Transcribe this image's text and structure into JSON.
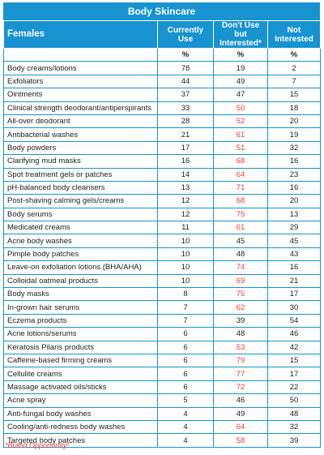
{
  "title": "Body Skincare",
  "headers": {
    "group": "Females",
    "currently_use": "Currently Use",
    "interested": "Don't Use but Interested*",
    "not_interested": "Not Interested"
  },
  "units": {
    "c1": "%",
    "c2": "%",
    "c3": "%"
  },
  "accent_color": "#1793d1",
  "highlight_color": "#e8423a",
  "rows": [
    {
      "label": "Body creams/lotions",
      "current": "78",
      "interested": "19",
      "not": "2",
      "hl": false
    },
    {
      "label": "Exfoliators",
      "current": "44",
      "interested": "49",
      "not": "7",
      "hl": false
    },
    {
      "label": "Ointments",
      "current": "37",
      "interested": "47",
      "not": "15",
      "hl": false
    },
    {
      "label": "Clinical strength deodorant/antiperspirants",
      "current": "33",
      "interested": "50",
      "not": "18",
      "hl": true
    },
    {
      "label": "All-over deodorant",
      "current": "28",
      "interested": "52",
      "not": "20",
      "hl": true
    },
    {
      "label": "Antibacterial washes",
      "current": "21",
      "interested": "61",
      "not": "19",
      "hl": true
    },
    {
      "label": "Body powders",
      "current": "17",
      "interested": "51",
      "not": "32",
      "hl": true
    },
    {
      "label": "Clarifying mud masks",
      "current": "16",
      "interested": "68",
      "not": "16",
      "hl": true
    },
    {
      "label": "Spot treatment gels or patches",
      "current": "14",
      "interested": "64",
      "not": "23",
      "hl": true
    },
    {
      "label": "pH-balanced body cleansers",
      "current": "13",
      "interested": "71",
      "not": "16",
      "hl": true
    },
    {
      "label": "Post-shaving calming gels/creams",
      "current": "12",
      "interested": "68",
      "not": "20",
      "hl": true
    },
    {
      "label": "Body serums",
      "current": "12",
      "interested": "75",
      "not": "13",
      "hl": true
    },
    {
      "label": "Medicated creams",
      "current": "11",
      "interested": "61",
      "not": "29",
      "hl": true
    },
    {
      "label": "Acne body washes",
      "current": "10",
      "interested": "45",
      "not": "45",
      "hl": false
    },
    {
      "label": "Pimple body patches",
      "current": "10",
      "interested": "48",
      "not": "43",
      "hl": false
    },
    {
      "label": "Leave-on exfoliation lotions (BHA/AHA)",
      "current": "10",
      "interested": "74",
      "not": "16",
      "hl": true
    },
    {
      "label": "Colloidal oatmeal products",
      "current": "10",
      "interested": "69",
      "not": "21",
      "hl": true
    },
    {
      "label": "Body masks",
      "current": "8",
      "interested": "75",
      "not": "17",
      "hl": true
    },
    {
      "label": "In-grown hair serums",
      "current": "7",
      "interested": "62",
      "not": "30",
      "hl": true
    },
    {
      "label": "Eczema products",
      "current": "7",
      "interested": "39",
      "not": "54",
      "hl": false
    },
    {
      "label": "Acne lotions/serums",
      "current": "6",
      "interested": "48",
      "not": "46",
      "hl": false
    },
    {
      "label": "Keratosis Pilaris products",
      "current": "6",
      "interested": "53",
      "not": "42",
      "hl": true
    },
    {
      "label": "Caffeine-based firming creams",
      "current": "6",
      "interested": "79",
      "not": "15",
      "hl": true
    },
    {
      "label": "Cellulite creams",
      "current": "6",
      "interested": "77",
      "not": "17",
      "hl": true
    },
    {
      "label": "Massage activated oils/sticks",
      "current": "6",
      "interested": "72",
      "not": "22",
      "hl": true
    },
    {
      "label": "Acne spray",
      "current": "5",
      "interested": "46",
      "not": "50",
      "hl": false
    },
    {
      "label": "Anti-fungal body washes",
      "current": "4",
      "interested": "49",
      "not": "48",
      "hl": false
    },
    {
      "label": "Cooling/anti-redness body washes",
      "current": "4",
      "interested": "64",
      "not": "32",
      "hl": true
    },
    {
      "label": "Targeted body patches",
      "current": "4",
      "interested": "58",
      "not": "39",
      "hl": true
    }
  ],
  "footnote": "*Brand Opportunity!"
}
